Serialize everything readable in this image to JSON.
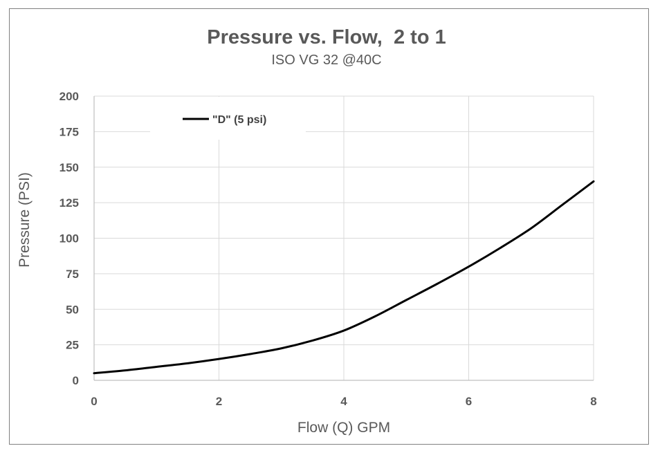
{
  "chart_data": {
    "type": "line",
    "title": "Pressure vs. Flow,  2 to 1",
    "subtitle": "ISO VG 32 @40C",
    "xlabel": "Flow (Q) GPM",
    "ylabel": "Pressure (PSI)",
    "xlim": [
      0,
      8
    ],
    "ylim": [
      0,
      200
    ],
    "x_ticks": [
      "0",
      "2",
      "4",
      "6",
      "8"
    ],
    "y_ticks": [
      "0",
      "25",
      "50",
      "75",
      "100",
      "125",
      "150",
      "175",
      "200"
    ],
    "grid": true,
    "legend_position": "top-left",
    "series": [
      {
        "name": "\"D\" (5 psi)",
        "color": "#000000",
        "x": [
          0,
          0.5,
          1,
          1.5,
          2,
          2.5,
          3,
          3.5,
          4,
          4.5,
          5,
          5.5,
          6,
          6.5,
          7,
          7.5,
          8
        ],
        "y": [
          5,
          7,
          9.5,
          12,
          15,
          18.5,
          22.5,
          28,
          35,
          45,
          56.5,
          68,
          80,
          93,
          107,
          123.5,
          140
        ]
      }
    ]
  }
}
